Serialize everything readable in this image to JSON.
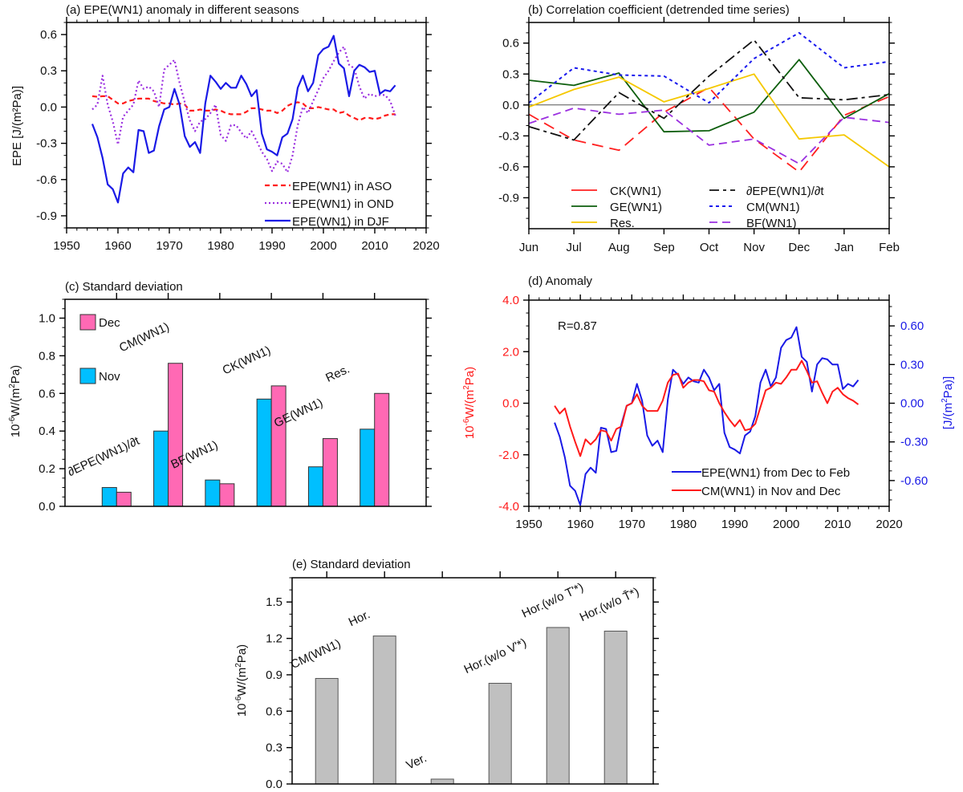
{
  "chart_data": [
    {
      "id": "a",
      "type": "line",
      "title": "(a) EPE(WN1) anomaly in different seasons",
      "xlabel": "",
      "ylabel": "EPE [J/(m²Pa)]",
      "xlim": [
        1950,
        2020
      ],
      "ylim": [
        -1.0,
        0.7
      ],
      "xticks": [
        1950,
        1960,
        1970,
        1980,
        1990,
        2000,
        2010,
        2020
      ],
      "yticks": [
        -0.9,
        -0.6,
        -0.3,
        0.0,
        0.3,
        0.6
      ],
      "ytick_labels": [
        "-0.9",
        "-0.6",
        "-0.3",
        "0.0",
        "0.3",
        "0.6"
      ],
      "legend_position": "bottom-right",
      "x": [
        1955,
        1956,
        1957,
        1958,
        1959,
        1960,
        1961,
        1962,
        1963,
        1964,
        1965,
        1966,
        1967,
        1968,
        1969,
        1970,
        1971,
        1972,
        1973,
        1974,
        1975,
        1976,
        1977,
        1978,
        1979,
        1980,
        1981,
        1982,
        1983,
        1984,
        1985,
        1986,
        1987,
        1988,
        1989,
        1990,
        1991,
        1992,
        1993,
        1994,
        1995,
        1996,
        1997,
        1998,
        1999,
        2000,
        2001,
        2002,
        2003,
        2004,
        2005,
        2006,
        2007,
        2008,
        2009,
        2010,
        2011,
        2012,
        2013,
        2014
      ],
      "series": [
        {
          "name": "EPE(WN1) in ASO",
          "color": "#ff1a1a",
          "dash": "6,4",
          "width": 2.2,
          "values": [
            0.09,
            0.085,
            0.09,
            0.09,
            0.06,
            0.03,
            0.03,
            0.05,
            0.06,
            0.07,
            0.07,
            0.07,
            0.05,
            0.04,
            0.03,
            0.03,
            0.02,
            0.03,
            0.02,
            -0.03,
            -0.03,
            -0.02,
            -0.03,
            -0.03,
            -0.02,
            -0.03,
            -0.05,
            -0.06,
            -0.06,
            -0.06,
            -0.04,
            -0.01,
            -0.01,
            -0.02,
            -0.03,
            -0.03,
            -0.05,
            -0.03,
            0.01,
            0.03,
            0.04,
            0.03,
            -0.01,
            -0.01,
            0.0,
            -0.01,
            -0.02,
            -0.02,
            -0.05,
            -0.04,
            -0.07,
            -0.09,
            -0.11,
            -0.09,
            -0.09,
            -0.1,
            -0.09,
            -0.07,
            -0.06,
            -0.06
          ]
        },
        {
          "name": "EPE(WN1) in OND",
          "color": "#9b30e0",
          "dash": "2,3",
          "width": 2.2,
          "values": [
            -0.02,
            0.02,
            0.26,
            0.02,
            -0.12,
            -0.31,
            -0.08,
            -0.03,
            0.02,
            0.22,
            0.15,
            0.17,
            0.13,
            0.0,
            0.31,
            0.35,
            0.39,
            0.2,
            0.04,
            -0.11,
            -0.2,
            -0.12,
            -0.1,
            -0.05,
            0.02,
            -0.23,
            -0.28,
            -0.15,
            -0.15,
            -0.21,
            -0.26,
            -0.2,
            -0.28,
            -0.37,
            -0.43,
            -0.53,
            -0.45,
            -0.47,
            -0.54,
            -0.4,
            -0.15,
            0.0,
            -0.05,
            0.05,
            0.14,
            0.24,
            0.3,
            0.38,
            0.45,
            0.5,
            0.35,
            0.32,
            0.17,
            0.07,
            0.11,
            0.09,
            0.1,
            0.1,
            0.05,
            -0.07
          ]
        },
        {
          "name": "EPE(WN1) in DJF",
          "color": "#1a1ae6",
          "dash": "",
          "width": 2.2,
          "values": [
            -0.14,
            -0.25,
            -0.42,
            -0.64,
            -0.68,
            -0.79,
            -0.55,
            -0.5,
            -0.54,
            -0.19,
            -0.2,
            -0.38,
            -0.36,
            -0.16,
            -0.02,
            0.0,
            0.15,
            0.02,
            -0.24,
            -0.33,
            -0.29,
            -0.38,
            0.03,
            0.26,
            0.21,
            0.15,
            0.2,
            0.16,
            0.16,
            0.26,
            0.19,
            0.09,
            0.14,
            -0.22,
            -0.35,
            -0.37,
            -0.4,
            -0.25,
            -0.22,
            -0.1,
            0.16,
            0.26,
            0.13,
            0.2,
            0.43,
            0.48,
            0.5,
            0.59,
            0.36,
            0.32,
            0.09,
            0.3,
            0.35,
            0.33,
            0.29,
            0.3,
            0.11,
            0.14,
            0.13,
            0.18
          ]
        }
      ]
    },
    {
      "id": "b",
      "type": "line",
      "title": "(b) Correlation coefficient (detrended time series)",
      "xlabel": "",
      "ylabel": "",
      "ylim": [
        -1.2,
        0.8
      ],
      "categories": [
        "Jun",
        "Jul",
        "Aug",
        "Sep",
        "Oct",
        "Nov",
        "Dec",
        "Jan",
        "Feb"
      ],
      "yticks": [
        -0.9,
        -0.6,
        -0.3,
        0.0,
        0.3,
        0.6
      ],
      "ytick_labels": [
        "-0.9",
        "-0.6",
        "-0.3",
        "0.0",
        "0.3",
        "0.6"
      ],
      "zero_line": true,
      "legend_position": "bottom-center",
      "series": [
        {
          "name": "CK(WN1)",
          "color": "#ff2020",
          "dash": "14,8",
          "width": 1.8,
          "values": [
            -0.09,
            -0.34,
            -0.44,
            -0.07,
            0.17,
            -0.33,
            -0.65,
            -0.1,
            0.08
          ]
        },
        {
          "name": "GE(WN1)",
          "color": "#0d5e0d",
          "dash": "",
          "width": 1.8,
          "values": [
            0.24,
            0.19,
            0.31,
            -0.26,
            -0.25,
            -0.07,
            0.44,
            -0.13,
            0.11
          ]
        },
        {
          "name": "Res.",
          "color": "#f5c800",
          "dash": "",
          "width": 1.8,
          "values": [
            -0.02,
            0.15,
            0.27,
            0.03,
            0.16,
            0.3,
            -0.33,
            -0.29,
            -0.6
          ]
        },
        {
          "name": "∂EPE(WN1)/∂t",
          "color": "#111111",
          "dash": "14,5,4,5",
          "width": 1.8,
          "values": [
            -0.21,
            -0.34,
            0.12,
            -0.13,
            0.28,
            0.63,
            0.07,
            0.05,
            0.1
          ]
        },
        {
          "name": "CM(WN1)",
          "color": "#1a1aee",
          "dash": "4,4",
          "width": 2.0,
          "values": [
            0.02,
            0.36,
            0.29,
            0.28,
            0.02,
            0.45,
            0.7,
            0.36,
            0.42
          ]
        },
        {
          "name": "BF(WN1)",
          "color": "#9b30e0",
          "dash": "10,6",
          "width": 1.8,
          "values": [
            -0.18,
            -0.03,
            -0.09,
            -0.05,
            -0.39,
            -0.33,
            -0.57,
            -0.12,
            -0.17
          ]
        }
      ]
    },
    {
      "id": "c",
      "type": "bar",
      "title": "(c) Standard deviation",
      "xlabel": "",
      "ylabel": "10⁻⁶W/(m²Pa)",
      "ylim": [
        0,
        1.1
      ],
      "yticks": [
        0.0,
        0.2,
        0.4,
        0.6,
        0.8,
        1.0
      ],
      "ytick_labels": [
        "0.0",
        "0.2",
        "0.4",
        "0.6",
        "0.8",
        "1.0"
      ],
      "categories": [
        "∂EPE(WN1)/∂t",
        "CM(WN1)",
        "BF(WN1)",
        "CK(WN1)",
        "GE(WN1)",
        "Res."
      ],
      "legend_position": "top-left",
      "series": [
        {
          "name": "Nov",
          "color": "#00bfff",
          "values": [
            0.1,
            0.4,
            0.14,
            0.57,
            0.21,
            0.41
          ]
        },
        {
          "name": "Dec",
          "color": "#ff69b4",
          "values": [
            0.075,
            0.76,
            0.12,
            0.64,
            0.36,
            0.6
          ]
        }
      ]
    },
    {
      "id": "d",
      "type": "line",
      "title": "(d) Anomaly",
      "annotation": "R=0.87",
      "xlabel": "",
      "ylabel_left": "10⁻⁶W/(m²Pa)",
      "ylabel_right": "[J/(m²Pa)]",
      "left_color": "#ff1a1a",
      "right_color": "#1a1ae6",
      "xlim": [
        1950,
        2020
      ],
      "ylim_left": [
        -4.0,
        4.0
      ],
      "ylim_right": [
        -0.8,
        0.8
      ],
      "xticks": [
        1950,
        1960,
        1970,
        1980,
        1990,
        2000,
        2010,
        2020
      ],
      "yticks_left": [
        -4.0,
        -2.0,
        0.0,
        2.0,
        4.0
      ],
      "ytick_labels_left": [
        "-4.0",
        "-2.0",
        "0.0",
        "2.0",
        "4.0"
      ],
      "yticks_right": [
        -0.6,
        -0.3,
        0.0,
        0.3,
        0.6
      ],
      "ytick_labels_right": [
        "-0.60",
        "-0.30",
        "0.00",
        "0.30",
        "0.60"
      ],
      "legend_position": "bottom-right",
      "x": [
        1955,
        1956,
        1957,
        1958,
        1959,
        1960,
        1961,
        1962,
        1963,
        1964,
        1965,
        1966,
        1967,
        1968,
        1969,
        1970,
        1971,
        1972,
        1973,
        1974,
        1975,
        1976,
        1977,
        1978,
        1979,
        1980,
        1981,
        1982,
        1983,
        1984,
        1985,
        1986,
        1987,
        1988,
        1989,
        1990,
        1991,
        1992,
        1993,
        1994,
        1995,
        1996,
        1997,
        1998,
        1999,
        2000,
        2001,
        2002,
        2003,
        2004,
        2005,
        2006,
        2007,
        2008,
        2009,
        2010,
        2011,
        2012,
        2013,
        2014
      ],
      "series": [
        {
          "name": "EPE(WN1) from Dec to Feb",
          "axis": "right",
          "color": "#1a1ae6",
          "values": [
            -0.15,
            -0.26,
            -0.42,
            -0.64,
            -0.68,
            -0.79,
            -0.55,
            -0.5,
            -0.54,
            -0.19,
            -0.2,
            -0.38,
            -0.37,
            -0.16,
            -0.02,
            0.0,
            0.15,
            0.02,
            -0.25,
            -0.33,
            -0.29,
            -0.38,
            0.03,
            0.26,
            0.22,
            0.15,
            0.2,
            0.17,
            0.16,
            0.26,
            0.2,
            0.1,
            0.15,
            -0.23,
            -0.34,
            -0.36,
            -0.39,
            -0.25,
            -0.22,
            -0.1,
            0.16,
            0.26,
            0.13,
            0.2,
            0.43,
            0.49,
            0.51,
            0.59,
            0.36,
            0.32,
            0.09,
            0.3,
            0.35,
            0.34,
            0.3,
            0.3,
            0.11,
            0.15,
            0.13,
            0.18
          ]
        },
        {
          "name": "CM(WN1) in Nov and Dec",
          "axis": "left",
          "color": "#ff1a1a",
          "values": [
            -0.1,
            -0.4,
            -0.2,
            -0.9,
            -1.5,
            -2.05,
            -1.4,
            -1.6,
            -1.4,
            -1.05,
            -1.1,
            -1.45,
            -1.0,
            -0.9,
            -0.1,
            0.0,
            0.35,
            -0.1,
            -0.3,
            -0.3,
            -0.3,
            0.1,
            0.8,
            1.1,
            1.15,
            0.6,
            0.8,
            0.9,
            0.9,
            0.85,
            0.5,
            0.45,
            0.0,
            -0.35,
            -0.65,
            -0.9,
            -0.65,
            -1.05,
            -1.0,
            -0.8,
            -0.15,
            0.5,
            0.6,
            0.8,
            0.75,
            1.0,
            1.3,
            1.3,
            1.65,
            1.25,
            0.8,
            0.85,
            0.4,
            0.0,
            0.45,
            0.6,
            0.35,
            0.2,
            0.1,
            -0.05
          ]
        }
      ]
    },
    {
      "id": "e",
      "type": "bar",
      "title": "(e) Standard deviation",
      "xlabel": "",
      "ylabel": "10⁻⁶W/(m²Pa)",
      "ylim": [
        0,
        1.7
      ],
      "yticks": [
        0.0,
        0.3,
        0.6,
        0.9,
        1.2,
        1.5
      ],
      "ytick_labels": [
        "0.0",
        "0.3",
        "0.6",
        "0.9",
        "1.2",
        "1.5"
      ],
      "categories": [
        "CM(WN1)",
        "Hor.",
        "Ver.",
        "Hor.(w/o V'*)",
        "Hor.(w/o T'*)",
        "Hor.(w/o T̄*)"
      ],
      "series": [
        {
          "name": "std",
          "color": "#c0c0c0",
          "values": [
            0.87,
            1.22,
            0.04,
            0.83,
            1.29,
            1.26
          ]
        }
      ]
    }
  ]
}
